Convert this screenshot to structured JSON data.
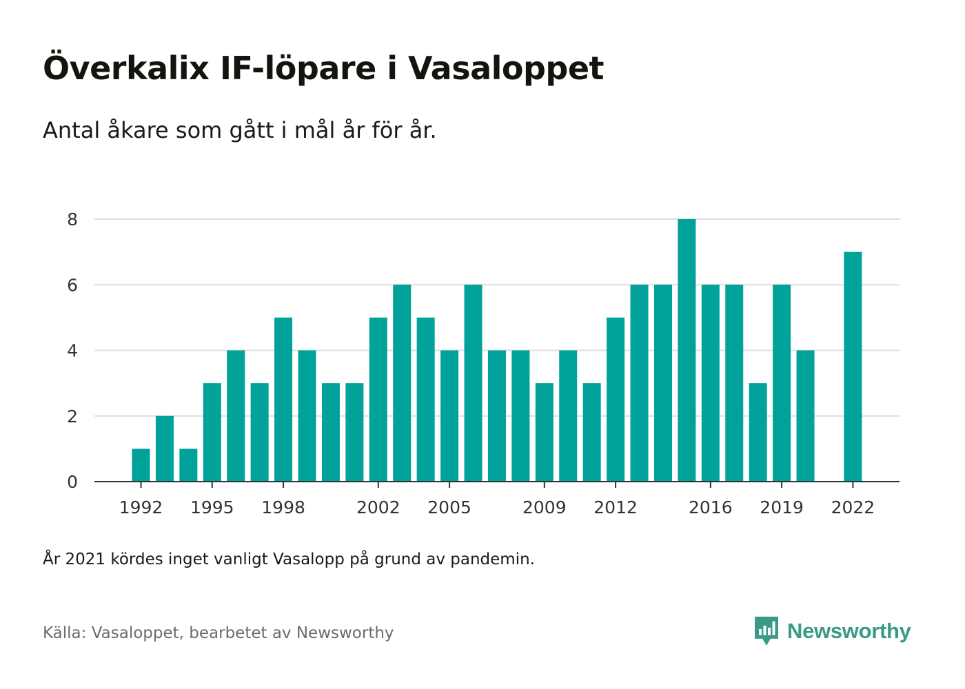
{
  "chart_data": {
    "type": "bar",
    "title": "Överkalix IF-löpare i Vasaloppet",
    "subtitle": "Antal åkare som gått i mål år för år.",
    "x": [
      1992,
      1993,
      1994,
      1995,
      1996,
      1997,
      1998,
      1999,
      2000,
      2001,
      2002,
      2003,
      2004,
      2005,
      2006,
      2007,
      2008,
      2009,
      2010,
      2011,
      2012,
      2013,
      2014,
      2015,
      2016,
      2017,
      2018,
      2019,
      2020,
      2021,
      2022
    ],
    "values": [
      1,
      2,
      1,
      3,
      4,
      3,
      5,
      4,
      3,
      3,
      5,
      6,
      5,
      4,
      6,
      4,
      4,
      3,
      4,
      3,
      5,
      6,
      6,
      8,
      6,
      6,
      3,
      6,
      4,
      null,
      7
    ],
    "x_tick_labels": [
      "1992",
      "1995",
      "1998",
      "2002",
      "2005",
      "2009",
      "2012",
      "2016",
      "2019",
      "2022"
    ],
    "y_tick_labels": [
      "0",
      "2",
      "4",
      "6",
      "8"
    ],
    "ylim": [
      0,
      8
    ],
    "xlabel": "",
    "ylabel": "",
    "grid": true,
    "bar_color": "#00a29a"
  },
  "note": "År 2021 kördes inget vanligt Vasalopp på grund av pandemin.",
  "source": "Källa: Vasaloppet, bearbetet av Newsworthy",
  "brand": {
    "name": "Newsworthy",
    "icon": "newsworthy-logo-icon",
    "color": "#3a9a88"
  }
}
